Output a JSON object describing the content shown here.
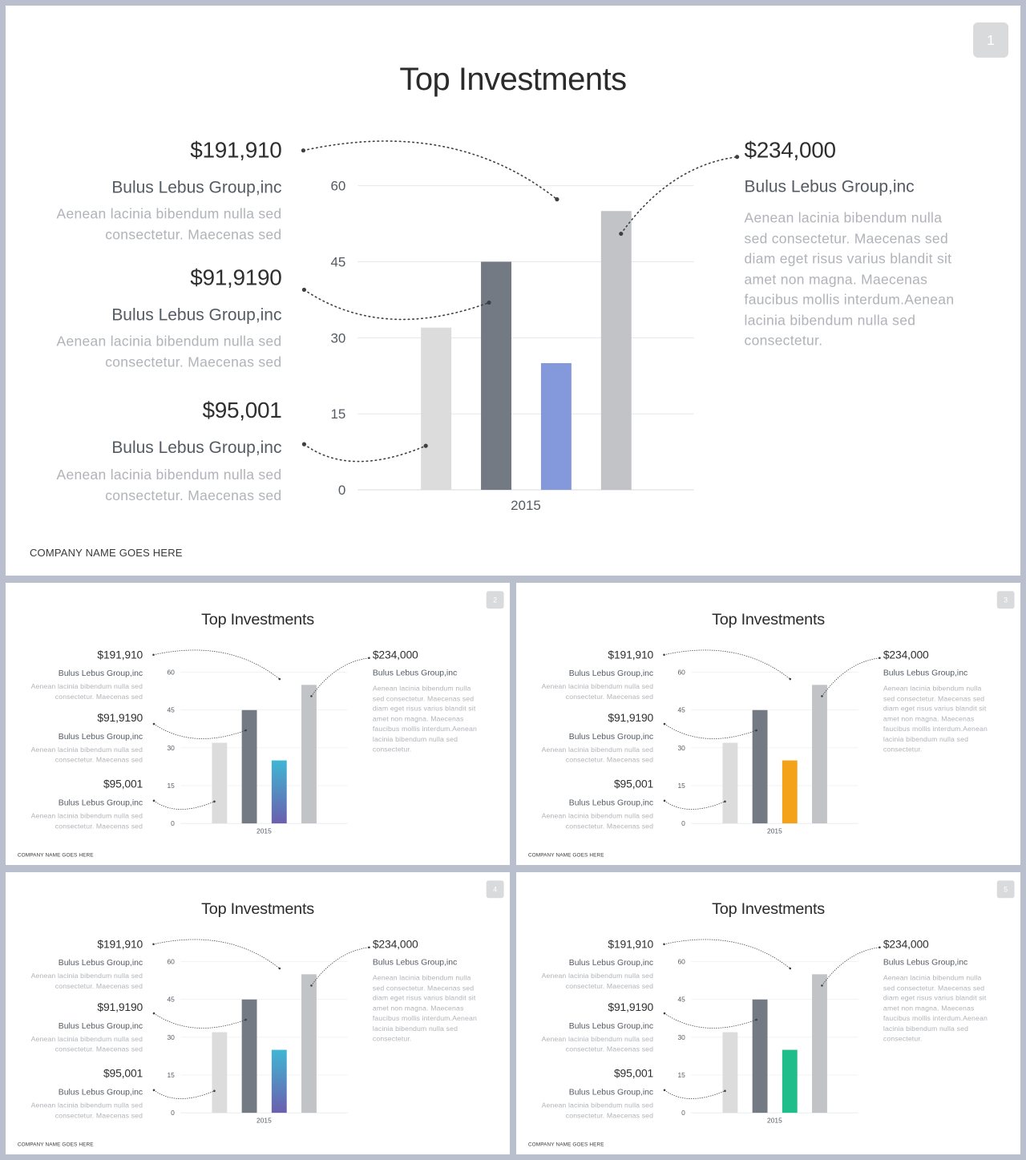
{
  "slides": [
    {
      "page_number": "1",
      "title": "Top Investments",
      "footer": "COMPANY NAME GOES HERE",
      "callouts_left": [
        {
          "amount": "$191,910",
          "company": "Bulus Lebus Group,inc",
          "desc": "Aenean lacinia bibendum nulla sed consectetur. Maecenas sed"
        },
        {
          "amount": "$91,9190",
          "company": "Bulus Lebus Group,inc",
          "desc": "Aenean lacinia bibendum nulla sed consectetur. Maecenas sed"
        },
        {
          "amount": "$95,001",
          "company": "Bulus Lebus Group,inc",
          "desc": "Aenean lacinia bibendum nulla sed consectetur. Maecenas sed"
        }
      ],
      "callout_right": {
        "amount": "$234,000",
        "company": "Bulus Lebus Group,inc",
        "desc": "Aenean lacinia bibendum nulla sed consectetur. Maecenas sed diam eget risus varius blandit sit amet non magna. Maecenas faucibus mollis interdum.Aenean lacinia bibendum nulla sed consectetur."
      },
      "accent_fill": "#8399dc",
      "accent_fill_bottom": "#8399dc"
    },
    {
      "page_number": "2",
      "title": "Top Investments",
      "footer": "COMPANY NAME GOES HERE",
      "callouts_left": [
        {
          "amount": "$191,910",
          "company": "Bulus Lebus Group,inc",
          "desc": "Aenean lacinia bibendum nulla sed consectetur. Maecenas sed"
        },
        {
          "amount": "$91,9190",
          "company": "Bulus Lebus Group,inc",
          "desc": "Aenean lacinia bibendum nulla sed consectetur. Maecenas sed"
        },
        {
          "amount": "$95,001",
          "company": "Bulus Lebus Group,inc",
          "desc": "Aenean lacinia bibendum nulla sed consectetur. Maecenas sed"
        }
      ],
      "callout_right": {
        "amount": "$234,000",
        "company": "Bulus Lebus Group,inc",
        "desc": "Aenean lacinia bibendum nulla sed consectetur. Maecenas sed diam eget risus varius blandit sit amet non magna. Maecenas faucibus mollis interdum.Aenean lacinia bibendum nulla sed consectetur."
      },
      "accent_fill": "#3fb6d4",
      "accent_fill_bottom": "#6b5fae"
    },
    {
      "page_number": "3",
      "title": "Top Investments",
      "footer": "COMPANY NAME GOES HERE",
      "callouts_left": [
        {
          "amount": "$191,910",
          "company": "Bulus Lebus Group,inc",
          "desc": "Aenean lacinia bibendum nulla sed consectetur. Maecenas sed"
        },
        {
          "amount": "$91,9190",
          "company": "Bulus Lebus Group,inc",
          "desc": "Aenean lacinia bibendum nulla sed consectetur. Maecenas sed"
        },
        {
          "amount": "$95,001",
          "company": "Bulus Lebus Group,inc",
          "desc": "Aenean lacinia bibendum nulla sed consectetur. Maecenas sed"
        }
      ],
      "callout_right": {
        "amount": "$234,000",
        "company": "Bulus Lebus Group,inc",
        "desc": "Aenean lacinia bibendum nulla sed consectetur. Maecenas sed diam eget risus varius blandit sit amet non magna. Maecenas faucibus mollis interdum.Aenean lacinia bibendum nulla sed consectetur."
      },
      "accent_fill": "#f4a21a",
      "accent_fill_bottom": "#f4a21a"
    },
    {
      "page_number": "4",
      "title": "Top Investments",
      "footer": "COMPANY NAME GOES HERE",
      "callouts_left": [
        {
          "amount": "$191,910",
          "company": "Bulus Lebus Group,inc",
          "desc": "Aenean lacinia bibendum nulla sed consectetur. Maecenas sed"
        },
        {
          "amount": "$91,9190",
          "company": "Bulus Lebus Group,inc",
          "desc": "Aenean lacinia bibendum nulla sed consectetur. Maecenas sed"
        },
        {
          "amount": "$95,001",
          "company": "Bulus Lebus Group,inc",
          "desc": "Aenean lacinia bibendum nulla sed consectetur. Maecenas sed"
        }
      ],
      "callout_right": {
        "amount": "$234,000",
        "company": "Bulus Lebus Group,inc",
        "desc": "Aenean lacinia bibendum nulla sed consectetur. Maecenas sed diam eget risus varius blandit sit amet non magna. Maecenas faucibus mollis interdum.Aenean lacinia bibendum nulla sed consectetur."
      },
      "accent_fill": "#3fb6d4",
      "accent_fill_bottom": "#6b5fae"
    },
    {
      "page_number": "5",
      "title": "Top Investments",
      "footer": "COMPANY NAME GOES HERE",
      "callouts_left": [
        {
          "amount": "$191,910",
          "company": "Bulus Lebus Group,inc",
          "desc": "Aenean lacinia bibendum nulla sed consectetur. Maecenas sed"
        },
        {
          "amount": "$91,9190",
          "company": "Bulus Lebus Group,inc",
          "desc": "Aenean lacinia bibendum nulla sed consectetur. Maecenas sed"
        },
        {
          "amount": "$95,001",
          "company": "Bulus Lebus Group,inc",
          "desc": "Aenean lacinia bibendum nulla sed consectetur. Maecenas sed"
        }
      ],
      "callout_right": {
        "amount": "$234,000",
        "company": "Bulus Lebus Group,inc",
        "desc": "Aenean lacinia bibendum nulla sed consectetur. Maecenas sed diam eget risus varius blandit sit amet non magna. Maecenas faucibus mollis interdum.Aenean lacinia bibendum nulla sed consectetur."
      },
      "accent_fill": "#1fbd8a",
      "accent_fill_bottom": "#1fbd8a"
    }
  ],
  "chart_data": {
    "type": "bar",
    "categories": [
      "2015"
    ],
    "series": [
      {
        "values": [
          32
        ],
        "color": "#dcdcdd"
      },
      {
        "values": [
          45
        ],
        "color": "#737a83"
      },
      {
        "values": [
          25
        ],
        "color": "accent"
      },
      {
        "values": [
          55
        ],
        "color": "#c1c3c7"
      }
    ],
    "yticks": [
      0,
      15,
      30,
      45,
      60
    ],
    "ylim": [
      0,
      60
    ],
    "grid": true,
    "title": "",
    "xlabel": "",
    "ylabel": ""
  }
}
